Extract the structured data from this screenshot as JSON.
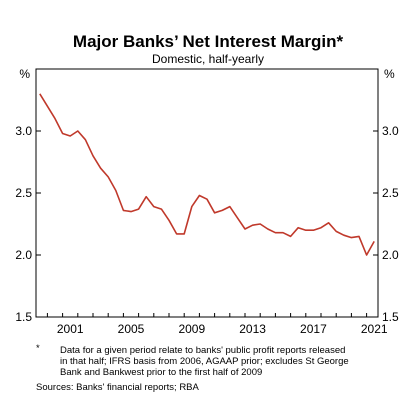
{
  "chart_data": {
    "type": "line",
    "title": "Major Banks’ Net Interest Margin*",
    "subtitle": "Domestic, half-yearly",
    "y_unit_left": "%",
    "y_unit_right": "%",
    "ylim": [
      1.5,
      3.5
    ],
    "y_ticks": [
      "1.5",
      "2.0",
      "2.5",
      "3.0"
    ],
    "xlim": [
      1999.25,
      2021.75
    ],
    "x_tick_labels": [
      "2001",
      "2005",
      "2009",
      "2013",
      "2017",
      "2021"
    ],
    "grid": false,
    "legend": "none",
    "line_color": "#c0392b",
    "series": [
      {
        "x": [
          1999.5,
          2000.0,
          2000.5,
          2001.0,
          2001.5,
          2002.0,
          2002.5,
          2003.0,
          2003.5,
          2004.0,
          2004.5,
          2005.0,
          2005.5,
          2006.0,
          2006.5,
          2007.0,
          2007.5,
          2008.0,
          2008.5,
          2009.0,
          2009.5,
          2010.0,
          2010.5,
          2011.0,
          2011.5,
          2012.0,
          2012.5,
          2013.0,
          2013.5,
          2014.0,
          2014.5,
          2015.0,
          2015.5,
          2016.0,
          2016.5,
          2017.0,
          2017.5,
          2018.0,
          2018.5,
          2019.0,
          2019.5,
          2020.0,
          2020.5,
          2021.0,
          2021.5
        ],
        "values": [
          3.3,
          3.2,
          3.1,
          2.98,
          2.96,
          3.0,
          2.93,
          2.8,
          2.7,
          2.63,
          2.52,
          2.36,
          2.35,
          2.37,
          2.47,
          2.39,
          2.37,
          2.28,
          2.17,
          2.17,
          2.39,
          2.48,
          2.45,
          2.34,
          2.36,
          2.39,
          2.3,
          2.21,
          2.24,
          2.25,
          2.21,
          2.18,
          2.18,
          2.15,
          2.22,
          2.2,
          2.2,
          2.22,
          2.26,
          2.19,
          2.16,
          2.14,
          2.15,
          2.0,
          2.11
        ]
      }
    ]
  },
  "notes": {
    "marker": "*",
    "lines": [
      "Data for a given period relate to banks' public profit reports released",
      "in that half; IFRS basis from 2006, AGAAP prior; excludes St George",
      "Bank and Bankwest prior to the first half of 2009"
    ],
    "source": "Sources: Banks' financial reports; RBA"
  }
}
